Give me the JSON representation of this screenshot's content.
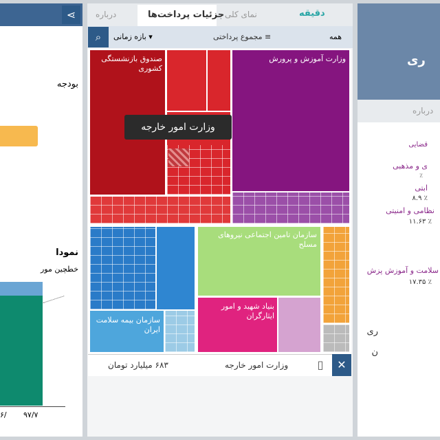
{
  "left_panel": {
    "label": "بودجه",
    "chart_title": "نمودا",
    "chart_note": "خطچین مور",
    "x_labels": [
      "/۶",
      "۹۷/۷"
    ]
  },
  "middle_panel": {
    "logo": "دقیقه",
    "tabs": [
      "نمای کلی",
      "جزئیات پرداخت‌ها",
      "درباره"
    ],
    "toolbar": {
      "filter": "همه",
      "measure": "مجموع پرداختی",
      "period": "بازه زمانی"
    },
    "treemap_labels": [
      "صندوق بازنشستگی کشوری",
      "وزارت آموزش و پرورش",
      "سازمان تامین اجتماعی نیروهای مسلح",
      "بنیاد شهید و امور ایثارگران",
      "سازمان بیمه سلامت ایران"
    ],
    "tooltip": "وزارت امور خارجه",
    "footer": {
      "name": "وزارت امور خارجه",
      "amount": "۶۸۳ میلیارد تومان"
    }
  },
  "right_panel": {
    "title": "ری",
    "tab": "درباره",
    "items": [
      "قضایی",
      "ی و مذهبی",
      "٪",
      "ابتی",
      "٪ ۸.۹",
      "نظامی و امنیتی",
      "٪ ۱۱.۶۳",
      "سلامت و آموزش پزش",
      "٪ ۱۷.۳۵",
      "ری",
      "ن"
    ]
  }
}
